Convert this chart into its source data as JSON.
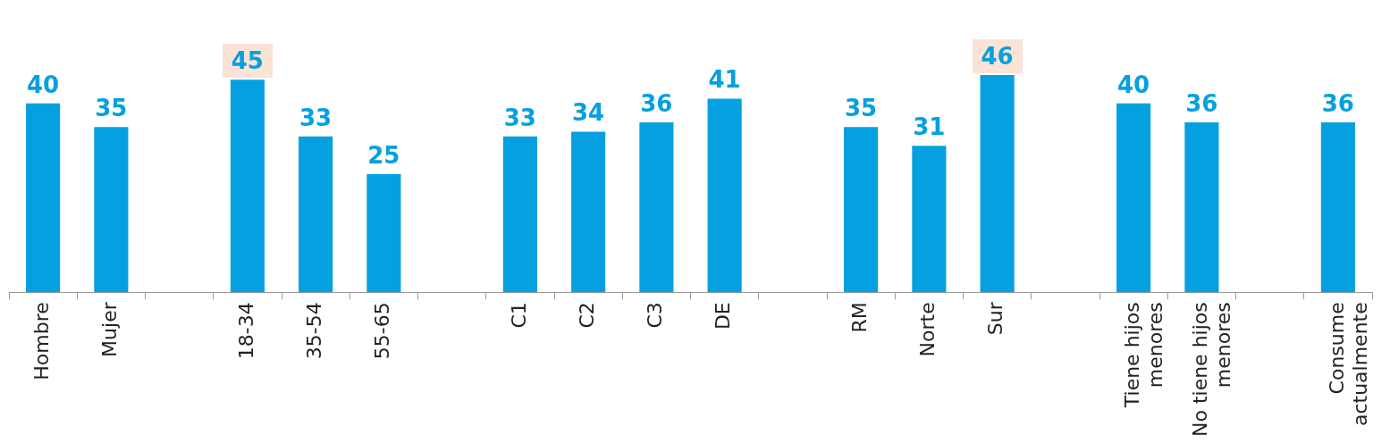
{
  "chart_data": {
    "type": "bar",
    "categories": [
      "Hombre",
      "Mujer",
      null,
      "18-34",
      "35-54",
      "55-65",
      null,
      "C1",
      "C2",
      "C3",
      "DE",
      null,
      "RM",
      "Norte",
      "Sur",
      null,
      "Tiene hijos menores",
      "No tiene hijos menores",
      null,
      "Consume actualmente"
    ],
    "values": [
      40,
      35,
      null,
      45,
      33,
      25,
      null,
      33,
      34,
      36,
      41,
      null,
      35,
      31,
      46,
      null,
      40,
      36,
      null,
      36
    ],
    "color": "#05a0df",
    "data_labels": true,
    "grid": false,
    "legend": false,
    "tick_labels": "x"
  }
}
